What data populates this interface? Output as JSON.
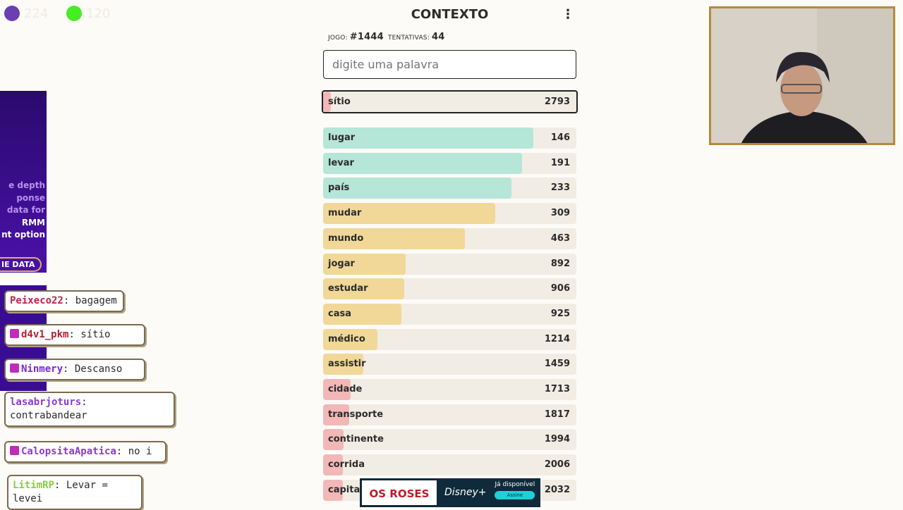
{
  "stream_stats": [
    {
      "color": "#6a3fb0",
      "value": "224"
    },
    {
      "color": "#44ee22",
      "value": "120"
    }
  ],
  "game": {
    "title": "CONTEXTO",
    "game_label": "JOGO:",
    "game_number": "#1444",
    "attempts_label": "TENTATIVAS:",
    "attempts": "44",
    "placeholder": "digite uma palavra",
    "current": {
      "word": "sítio",
      "rank": "2793",
      "color": "#f2b8b8",
      "fill": 0.03
    },
    "guesses": [
      {
        "word": "lugar",
        "rank": "146",
        "color": "#b5e6d8",
        "fill": 0.83
      },
      {
        "word": "levar",
        "rank": "191",
        "color": "#b5e6d8",
        "fill": 0.785
      },
      {
        "word": "país",
        "rank": "233",
        "color": "#b5e6d8",
        "fill": 0.745
      },
      {
        "word": "mudar",
        "rank": "309",
        "color": "#f1d898",
        "fill": 0.68
      },
      {
        "word": "mundo",
        "rank": "463",
        "color": "#f1d898",
        "fill": 0.56
      },
      {
        "word": "jogar",
        "rank": "892",
        "color": "#f1d898",
        "fill": 0.325
      },
      {
        "word": "estudar",
        "rank": "906",
        "color": "#f1d898",
        "fill": 0.32
      },
      {
        "word": "casa",
        "rank": "925",
        "color": "#f1d898",
        "fill": 0.31
      },
      {
        "word": "médico",
        "rank": "1214",
        "color": "#f1d898",
        "fill": 0.215
      },
      {
        "word": "assistir",
        "rank": "1459",
        "color": "#f1d898",
        "fill": 0.16
      },
      {
        "word": "cidade",
        "rank": "1713",
        "color": "#f2b8b8",
        "fill": 0.11
      },
      {
        "word": "transporte",
        "rank": "1817",
        "color": "#f2b8b8",
        "fill": 0.103
      },
      {
        "word": "continente",
        "rank": "1994",
        "color": "#f2b8b8",
        "fill": 0.08
      },
      {
        "word": "corrida",
        "rank": "2006",
        "color": "#f2b8b8",
        "fill": 0.078
      },
      {
        "word": "capital",
        "rank": "2032",
        "color": "#f2b8b8",
        "fill": 0.078
      }
    ]
  },
  "ad_left": {
    "lines": [
      "e depth",
      "ponse",
      "data for",
      "RMM",
      "nt option"
    ],
    "cta": "IE DATA"
  },
  "chat": [
    {
      "user": "Peixeco22",
      "color": "#c0204a",
      "msg": "bagagem"
    },
    {
      "user": "d4v1_pkm",
      "color": "#b02030",
      "msg": "sítio"
    },
    {
      "user": "Ninmery",
      "color": "#7a2ad0",
      "msg": "Descanso"
    },
    {
      "user": "lasabrjoturs",
      "color": "#8a3ad0",
      "msg": "contrabandear"
    },
    {
      "user": "CalopsitaApatica",
      "color": "#8a3ad0",
      "msg": "no i"
    },
    {
      "user": "LitimRP",
      "color": "#8acc40",
      "msg": "Levar = levei"
    }
  ],
  "ad_bottom": {
    "left": "OS ROSES",
    "middle": "Disney+",
    "right": "Já disponível",
    "button": "Assine"
  }
}
